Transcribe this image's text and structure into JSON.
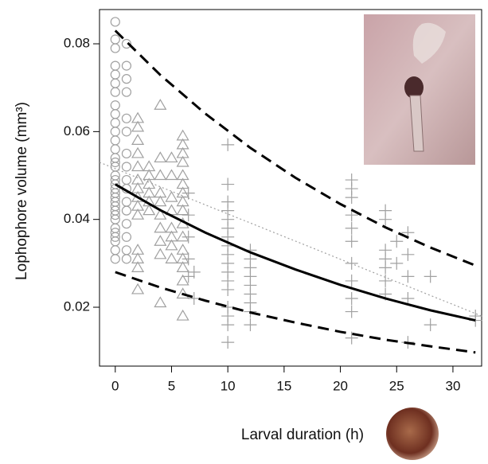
{
  "chart_data": {
    "type": "scatter",
    "xlabel": "Larval duration (h)",
    "ylabel": "Lophophore volume (mm³)",
    "xlim": [
      -1.4,
      32.55
    ],
    "ylim": [
      0.00659,
      0.0878
    ],
    "xticks": [
      0,
      5,
      10,
      15,
      20,
      25,
      30
    ],
    "yticks": [
      0.02,
      0.04,
      0.06,
      0.08
    ],
    "grid": false,
    "series": [
      {
        "kind": "points",
        "marker": "circle",
        "color": "#a0a0a0",
        "x": [
          0,
          0,
          0,
          0,
          0,
          0,
          0,
          0,
          0,
          0,
          0,
          0,
          0,
          0,
          0,
          0,
          0,
          0,
          0,
          0,
          0,
          0,
          0,
          0,
          0,
          0,
          0,
          0,
          0,
          0,
          0,
          0,
          0,
          1,
          1,
          1,
          1,
          1,
          1,
          1,
          1,
          1,
          1,
          1,
          1,
          1,
          1,
          1,
          1
        ],
        "values": [
          0.085,
          0.081,
          0.079,
          0.075,
          0.073,
          0.071,
          0.069,
          0.066,
          0.064,
          0.062,
          0.06,
          0.058,
          0.056,
          0.054,
          0.053,
          0.052,
          0.05,
          0.049,
          0.048,
          0.047,
          0.046,
          0.045,
          0.044,
          0.043,
          0.042,
          0.041,
          0.04,
          0.038,
          0.037,
          0.036,
          0.035,
          0.033,
          0.031,
          0.08,
          0.075,
          0.072,
          0.069,
          0.063,
          0.06,
          0.055,
          0.052,
          0.049,
          0.047,
          0.044,
          0.042,
          0.039,
          0.036,
          0.033,
          0.031
        ]
      },
      {
        "kind": "points",
        "marker": "triangle",
        "color": "#a0a0a0",
        "x": [
          2,
          2,
          2,
          2,
          2,
          2,
          2,
          2,
          2,
          2,
          2,
          2,
          2,
          2,
          3,
          3,
          3,
          3,
          3,
          3,
          4,
          4,
          4,
          4,
          4,
          4,
          4,
          4,
          4,
          4,
          5,
          5,
          5,
          5,
          5,
          5,
          5,
          5,
          6,
          6,
          6,
          6,
          6,
          6,
          6,
          6,
          6,
          6,
          6,
          6,
          6,
          6,
          6,
          6,
          6
        ],
        "values": [
          0.063,
          0.061,
          0.058,
          0.055,
          0.052,
          0.049,
          0.047,
          0.045,
          0.043,
          0.041,
          0.033,
          0.031,
          0.029,
          0.024,
          0.052,
          0.05,
          0.048,
          0.046,
          0.044,
          0.042,
          0.066,
          0.054,
          0.05,
          0.046,
          0.044,
          0.041,
          0.038,
          0.035,
          0.032,
          0.021,
          0.054,
          0.05,
          0.045,
          0.042,
          0.038,
          0.036,
          0.034,
          0.031,
          0.059,
          0.057,
          0.055,
          0.053,
          0.05,
          0.048,
          0.046,
          0.044,
          0.042,
          0.039,
          0.036,
          0.033,
          0.031,
          0.029,
          0.026,
          0.023,
          0.018
        ]
      },
      {
        "kind": "points",
        "marker": "plus",
        "color": "#a0a0a0",
        "x": [
          6.5,
          6.5,
          6.5,
          6.5,
          6.5,
          7,
          7,
          10,
          10,
          10,
          10,
          10,
          10,
          10,
          10,
          10,
          10,
          10,
          10,
          10,
          10,
          10,
          10,
          10,
          12,
          12,
          12,
          12,
          12,
          12,
          12,
          12,
          12,
          21,
          21,
          21,
          21,
          21,
          21,
          21,
          21,
          21,
          21,
          21,
          24,
          24,
          24,
          24,
          24,
          24,
          24,
          25,
          25,
          26,
          26,
          26,
          26,
          26,
          28,
          28,
          32,
          32
        ],
        "values": [
          0.046,
          0.041,
          0.036,
          0.031,
          0.027,
          0.028,
          0.022,
          0.057,
          0.048,
          0.044,
          0.042,
          0.04,
          0.038,
          0.036,
          0.034,
          0.032,
          0.03,
          0.028,
          0.026,
          0.024,
          0.02,
          0.018,
          0.016,
          0.012,
          0.033,
          0.031,
          0.029,
          0.027,
          0.025,
          0.023,
          0.021,
          0.019,
          0.016,
          0.049,
          0.047,
          0.045,
          0.041,
          0.038,
          0.035,
          0.03,
          0.026,
          0.022,
          0.019,
          0.013,
          0.042,
          0.04,
          0.033,
          0.031,
          0.029,
          0.026,
          0.023,
          0.035,
          0.03,
          0.037,
          0.032,
          0.027,
          0.022,
          0.012,
          0.027,
          0.016,
          0.018,
          0.017
        ]
      },
      {
        "kind": "line",
        "dash": "dotted",
        "color": "#a0a0a0",
        "x": [
          -1.4,
          32.55
        ],
        "values": [
          0.053,
          0.018
        ]
      },
      {
        "kind": "line",
        "dash": "dashed",
        "color": "#000000",
        "x": [
          0,
          4,
          8,
          12,
          16,
          20,
          24,
          28,
          32
        ],
        "values": [
          0.083,
          0.0729,
          0.0641,
          0.0563,
          0.0495,
          0.0435,
          0.0382,
          0.0336,
          0.0295
        ]
      },
      {
        "kind": "line",
        "dash": "solid",
        "color": "#000000",
        "x": [
          0,
          4,
          8,
          12,
          16,
          20,
          24,
          28,
          32
        ],
        "values": [
          0.048,
          0.0421,
          0.037,
          0.0325,
          0.0286,
          0.0251,
          0.022,
          0.0193,
          0.017
        ]
      },
      {
        "kind": "line",
        "dash": "dashed",
        "color": "#000000",
        "x": [
          0,
          4,
          8,
          12,
          16,
          20,
          24,
          28,
          32
        ],
        "values": [
          0.028,
          0.0245,
          0.0215,
          0.0188,
          0.0165,
          0.0144,
          0.0126,
          0.0111,
          0.0097
        ]
      }
    ]
  }
}
